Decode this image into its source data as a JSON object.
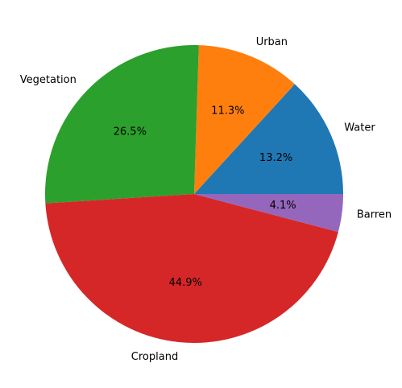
{
  "chart_data": {
    "type": "pie",
    "title": "",
    "start_angle_deg": 0,
    "direction": "counterclockwise",
    "slices": [
      {
        "label": "Water",
        "value": 13.2,
        "pct_text": "13.2%",
        "color": "#1f77b4"
      },
      {
        "label": "Urban",
        "value": 11.3,
        "pct_text": "11.3%",
        "color": "#ff7f0e"
      },
      {
        "label": "Vegetation",
        "value": 26.5,
        "pct_text": "26.5%",
        "color": "#2ca02c"
      },
      {
        "label": "Cropland",
        "value": 44.9,
        "pct_text": "44.9%",
        "color": "#d62728"
      },
      {
        "label": "Barren",
        "value": 4.1,
        "pct_text": "4.1%",
        "color": "#9467bd"
      }
    ]
  }
}
